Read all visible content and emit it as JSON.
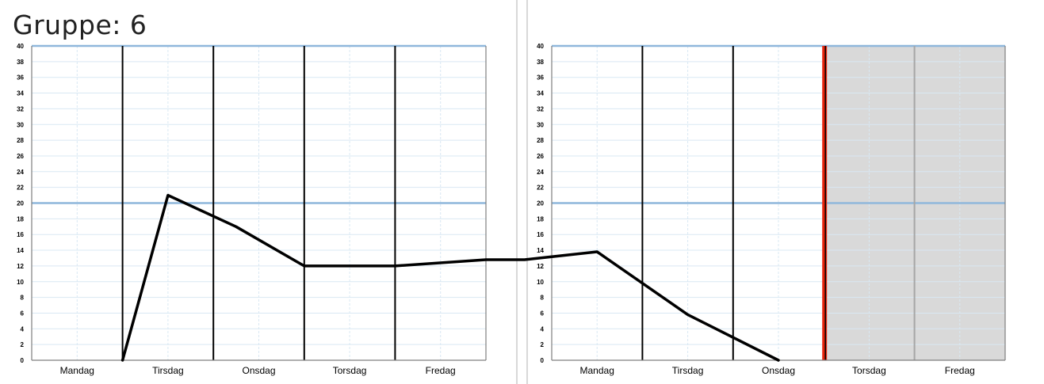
{
  "title": "Gruppe: 6",
  "colors": {
    "grid": "#d9e8f3",
    "reference_line": "#8fb7dc",
    "day_divider": "#000000",
    "frame": "#7f7f7f",
    "series": "#000000",
    "today_marker": "#e8260e",
    "future_shade": "#d9d9d9"
  },
  "chart_data": [
    {
      "type": "line",
      "panel": "left",
      "x_categories": [
        "Mandag",
        "Tirsdag",
        "Onsdag",
        "Torsdag",
        "Fredag"
      ],
      "ylim": [
        0,
        40
      ],
      "y_ticks": [
        0,
        2,
        4,
        6,
        8,
        10,
        12,
        14,
        16,
        18,
        20,
        22,
        24,
        26,
        28,
        30,
        32,
        34,
        36,
        38,
        40
      ],
      "reference_lines": [
        20,
        40
      ],
      "grid": true,
      "series": [
        {
          "points": [
            [
              1.0,
              0
            ],
            [
              1.5,
              21
            ],
            [
              2.25,
              17
            ],
            [
              3.0,
              12
            ],
            [
              4.0,
              12
            ],
            [
              5.0,
              12.8
            ]
          ]
        }
      ]
    },
    {
      "type": "line",
      "panel": "right",
      "x_categories": [
        "Mandag",
        "Tirsdag",
        "Onsdag",
        "Torsdag",
        "Fredag"
      ],
      "ylim": [
        0,
        40
      ],
      "y_ticks": [
        0,
        2,
        4,
        6,
        8,
        10,
        12,
        14,
        16,
        18,
        20,
        22,
        24,
        26,
        28,
        30,
        32,
        34,
        36,
        38,
        40
      ],
      "reference_lines": [
        20,
        40
      ],
      "grid": true,
      "today_marker_x": 3.0,
      "shaded_from_x": 3.0,
      "series": [
        {
          "points": [
            [
              -0.3,
              12.8
            ],
            [
              0.5,
              13.8
            ],
            [
              1.5,
              5.8
            ],
            [
              2.5,
              0
            ]
          ]
        }
      ]
    }
  ]
}
